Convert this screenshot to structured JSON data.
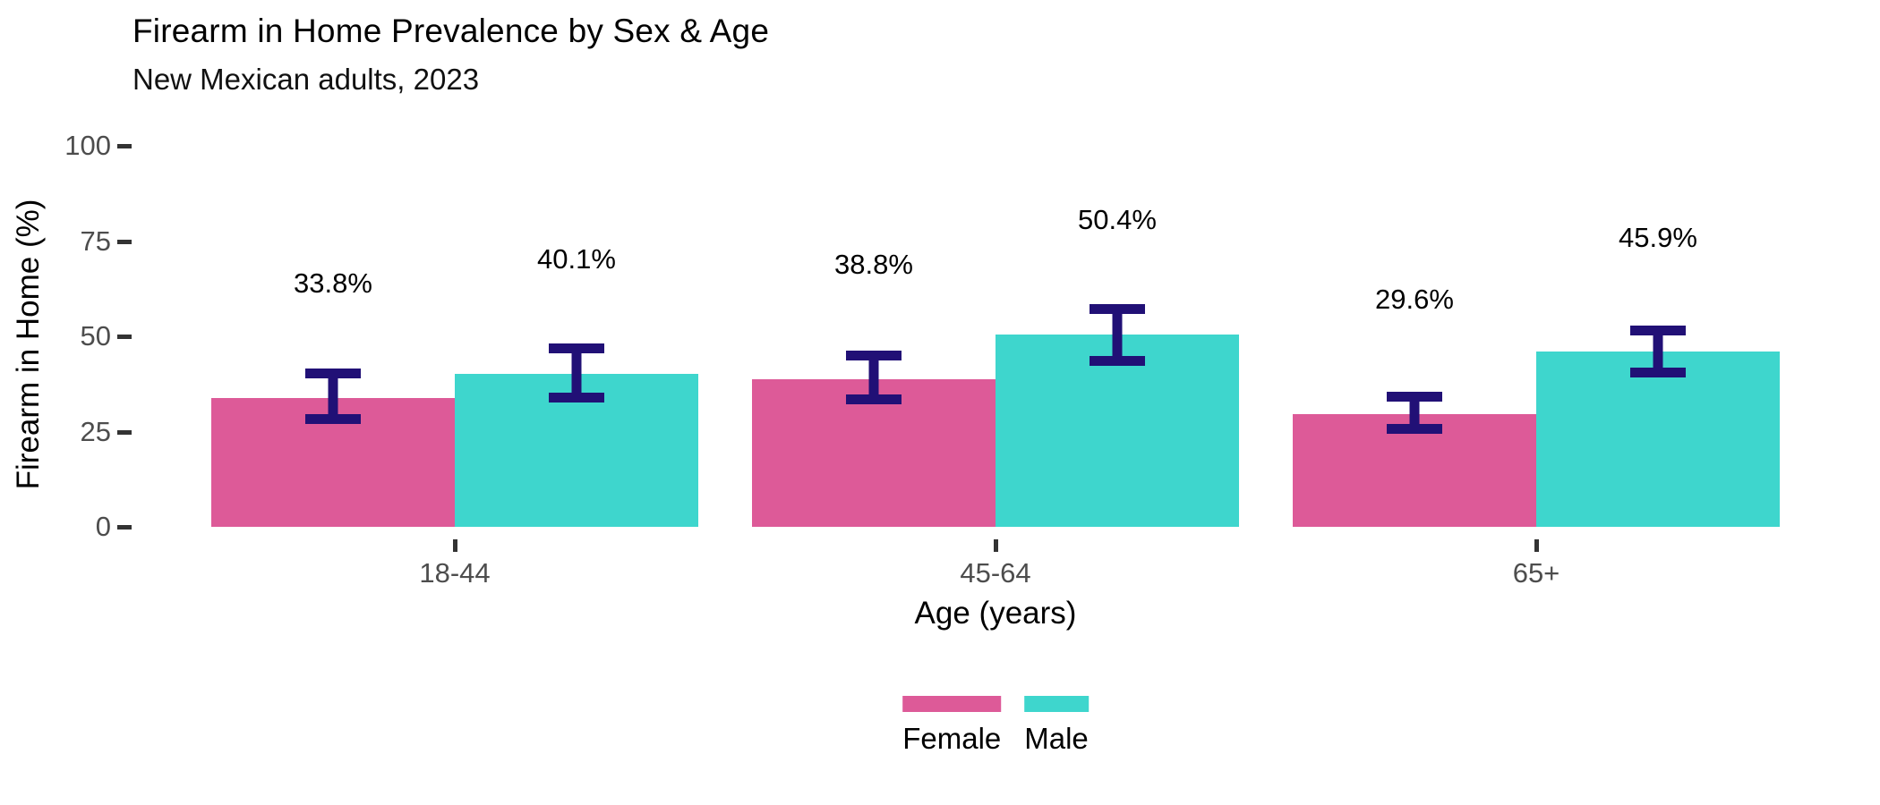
{
  "chart_data": {
    "type": "bar",
    "title": "Firearm in Home Prevalence by Sex & Age",
    "subtitle": "New Mexican adults, 2023",
    "xlabel": "Age (years)",
    "ylabel": "Firearm in Home (%)",
    "categories": [
      "18-44",
      "45-64",
      "65+"
    ],
    "series": [
      {
        "name": "Female",
        "color": "#DD5A98",
        "values": [
          33.8,
          38.8,
          29.6
        ],
        "labels": [
          "33.8%",
          "38.8%",
          "29.6%"
        ],
        "ci_low": [
          27.0,
          32.2,
          24.4
        ],
        "ci_high": [
          41.5,
          46.2,
          35.4
        ]
      },
      {
        "name": "Male",
        "color": "#3ED6CD",
        "values": [
          40.1,
          50.4,
          45.9
        ],
        "labels": [
          "40.1%",
          "50.4%",
          "45.9%"
        ],
        "ci_low": [
          32.6,
          42.3,
          39.2
        ],
        "ci_high": [
          48.1,
          58.5,
          52.8
        ]
      }
    ],
    "ylim": [
      0,
      100
    ],
    "yticks": [
      "0",
      "25",
      "50",
      "75",
      "100"
    ],
    "grid": false,
    "axis_lines": false,
    "legend_position": "bottom",
    "errorbar_color": "#211076",
    "axis_text_color": "#4d4d4d",
    "tick_mark_color": "#333333"
  }
}
